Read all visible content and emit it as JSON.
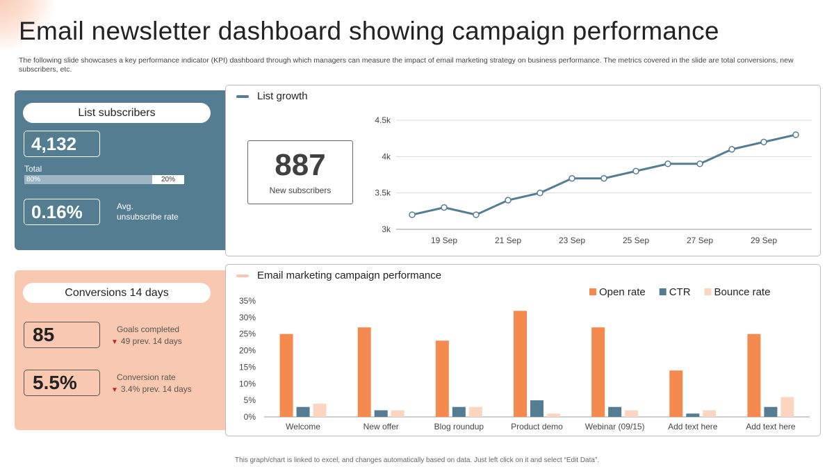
{
  "title": "Email newsletter dashboard showing campaign performance",
  "subtitle": "The following slide showcases a key performance indicator (KPI) dashboard through which managers can measure the impact of email marketing strategy on business performance. The metrics covered in the slide are total conversions, new subscribers, etc.",
  "subscribers": {
    "heading": "List subscribers",
    "total_value": "4,132",
    "total_label": "Total",
    "split_left": "80%",
    "split_right": "20%",
    "split_fraction": 0.8,
    "unsubscribe_value": "0.16%",
    "unsubscribe_label_1": "Avg.",
    "unsubscribe_label_2": "unsubscribe rate"
  },
  "conversions": {
    "heading": "Conversions  14 days",
    "goals_value": "85",
    "goals_label": "Goals completed",
    "goals_prev": "49 prev.  14 days",
    "rate_value": "5.5%",
    "rate_label": "Conversion  rate",
    "rate_prev": "3.4% prev.  14 days"
  },
  "growth": {
    "heading": "List growth",
    "new_subscribers_value": "887",
    "new_subscribers_label": "New subscribers"
  },
  "campaign": {
    "heading": "Email marketing campaign performance"
  },
  "footnote": "This graph/chart is linked to excel,  and changes automatically based on data. Just left click on it and select “Edit Data”.",
  "colors": {
    "slate": "#547d92",
    "peach": "#f9c8b0",
    "orange": "#f58a4f",
    "light_peach": "#fbd5bf"
  },
  "chart_data": [
    {
      "type": "line",
      "title": "List growth",
      "x": [
        "18 Sep",
        "19 Sep",
        "20 Sep",
        "21 Sep",
        "22 Sep",
        "23 Sep",
        "24 Sep",
        "25 Sep",
        "26 Sep",
        "27 Sep",
        "28 Sep",
        "29 Sep",
        "30 Sep"
      ],
      "xtick_labels": [
        "19 Sep",
        "21 Sep",
        "23 Sep",
        "25 Sep",
        "27 Sep",
        "29 Sep"
      ],
      "values": [
        3200,
        3300,
        3200,
        3400,
        3500,
        3700,
        3700,
        3800,
        3900,
        3900,
        4100,
        4200,
        4300
      ],
      "ylim": [
        3000,
        4500
      ],
      "ytick_labels": [
        "3k",
        "3.5k",
        "4k",
        "4.5k"
      ],
      "ytick_values": [
        3000,
        3500,
        4000,
        4500
      ],
      "grid": true,
      "color": "#547d92"
    },
    {
      "type": "bar",
      "title": "Email marketing campaign performance",
      "categories": [
        "Welcome",
        "New offer",
        "Blog roundup",
        "Product demo",
        "Webinar (09/15)",
        "Add text here",
        "Add text here"
      ],
      "series": [
        {
          "name": "Open rate",
          "color": "#f58a4f",
          "values": [
            25,
            27,
            23,
            32,
            27,
            14,
            25
          ]
        },
        {
          "name": "CTR",
          "color": "#547d92",
          "values": [
            3,
            2,
            3,
            5,
            3,
            1,
            3
          ]
        },
        {
          "name": "Bounce rate",
          "color": "#fbd5bf",
          "values": [
            4,
            2,
            3,
            1,
            2,
            2,
            6
          ]
        }
      ],
      "ylim": [
        0,
        35
      ],
      "ytick_labels": [
        "0%",
        "5%",
        "10%",
        "15%",
        "20%",
        "25%",
        "30%",
        "35%"
      ],
      "ytick_values": [
        0,
        5,
        10,
        15,
        20,
        25,
        30,
        35
      ],
      "legend": "top-right",
      "grid": false
    }
  ]
}
